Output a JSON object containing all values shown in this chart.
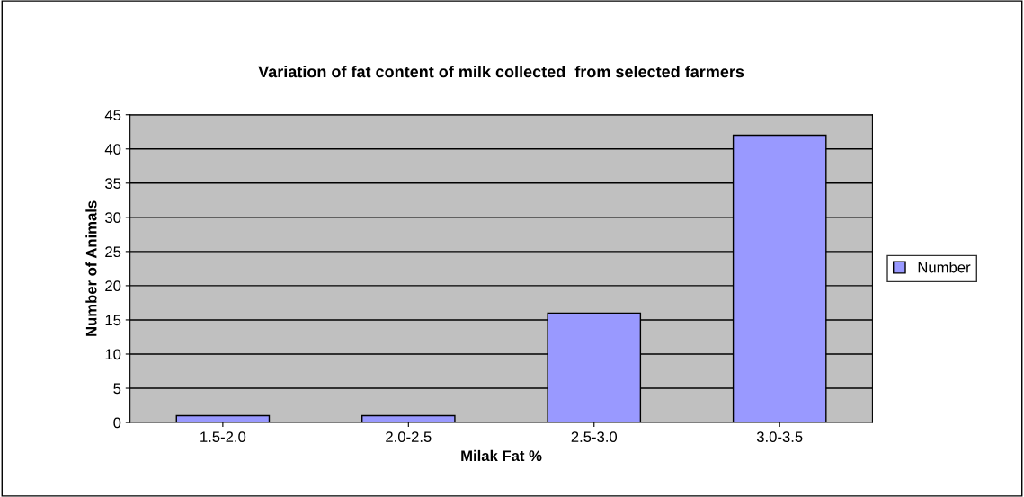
{
  "chart_data": {
    "type": "bar",
    "title": "Variation of fat content of milk collected  from selected farmers",
    "xlabel": "Milak Fat %",
    "ylabel": "Number of Animals",
    "categories": [
      "1.5-2.0",
      "2.0-2.5",
      "2.5-3.0",
      "3.0-3.5"
    ],
    "series": [
      {
        "name": "Number",
        "color": "#9999ff",
        "values": [
          1,
          1,
          16,
          42
        ]
      }
    ],
    "ylim": [
      0,
      45
    ],
    "yticks": [
      0,
      5,
      10,
      15,
      20,
      25,
      30,
      35,
      40,
      45
    ],
    "grid": "y",
    "legend": "right"
  }
}
